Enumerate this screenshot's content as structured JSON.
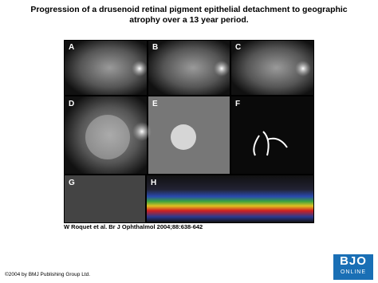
{
  "title": "Progression of a drusenoid retinal pigment epithelial detachment to geographic atrophy over a 13 year period.",
  "panels": [
    "A",
    "B",
    "C",
    "D",
    "E",
    "F",
    "G",
    "H"
  ],
  "citation": "W Roquet et al. Br J Ophthalmol 2004;88:638-642",
  "copyright": "©2004 by BMJ Publishing Group Ltd.",
  "logo": {
    "line1": "BJO",
    "line2": "ONLINE"
  }
}
